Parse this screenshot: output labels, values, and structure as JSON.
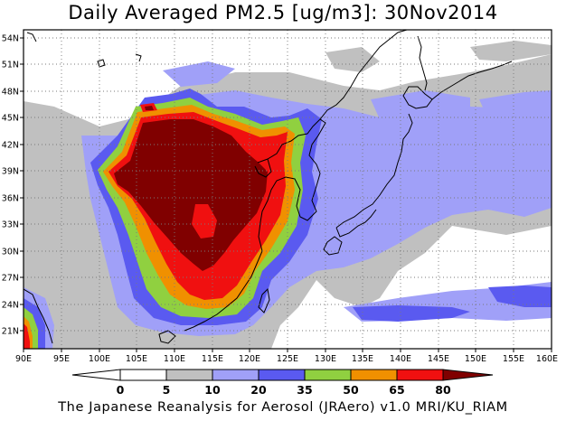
{
  "title": "Daily Averaged PM2.5 [ug/m3]: 30Nov2014",
  "footer": "The Japanese Reanalysis for Aerosol (JRAero) v1.0 MRI/KU_RIAM",
  "map": {
    "lon_labels": [
      "90E",
      "95E",
      "100E",
      "105E",
      "110E",
      "115E",
      "120E",
      "125E",
      "130E",
      "135E",
      "140E",
      "145E",
      "150E",
      "155E",
      "160E"
    ],
    "lat_labels": [
      "54N",
      "51N",
      "48N",
      "45N",
      "42N",
      "39N",
      "36N",
      "33N",
      "30N",
      "27N",
      "24N",
      "21N"
    ],
    "lon_range": [
      90,
      160
    ],
    "lat_range": [
      19.5,
      55.5
    ],
    "grid": "dotted"
  },
  "colorbar": {
    "levels": [
      "0",
      "5",
      "10",
      "20",
      "35",
      "50",
      "65",
      "80"
    ],
    "colors": [
      "#ffffff",
      "#c0c0c0",
      "#a0a0f8",
      "#5a5af0",
      "#90d040",
      "#f09000",
      "#f01010",
      "#800000"
    ]
  }
}
